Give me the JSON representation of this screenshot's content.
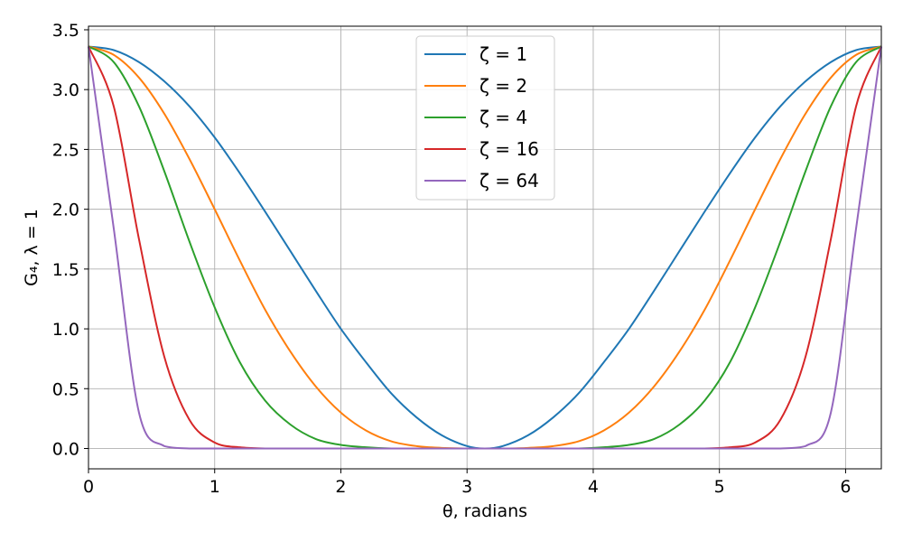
{
  "chart_data": {
    "type": "line",
    "title": "",
    "xlabel": "θ, radians",
    "ylabel": "G₄, λ = 1",
    "xlim": [
      0,
      6.283185
    ],
    "ylim": [
      -0.17,
      3.53
    ],
    "grid": true,
    "legend_position": "top-center",
    "x_ticks": [
      0,
      1,
      2,
      3,
      4,
      5,
      6
    ],
    "x_tick_labels": [
      "0",
      "1",
      "2",
      "3",
      "4",
      "5",
      "6"
    ],
    "y_ticks": [
      0,
      0.5,
      1,
      1.5,
      2,
      2.5,
      3,
      3.5
    ],
    "y_tick_labels": [
      "0.0",
      "0.5",
      "1.0",
      "1.5",
      "2.0",
      "2.5",
      "3.0",
      "3.5"
    ],
    "x": [
      0,
      0.2,
      0.4,
      0.6,
      0.8,
      1.0,
      1.2,
      1.4,
      1.6,
      1.8,
      2.0,
      2.2,
      2.4,
      2.6,
      2.8,
      3.0,
      3.1416,
      3.2832,
      3.4832,
      3.6832,
      3.8832,
      4.0832,
      4.2832,
      4.4832,
      4.6832,
      4.8832,
      5.0832,
      5.2832,
      5.4832,
      5.6832,
      5.8832,
      6.0832,
      6.2832
    ],
    "series": [
      {
        "name": "ζ = 1",
        "color": "#1f77b4",
        "values": [
          3.36,
          3.33,
          3.23,
          3.07,
          2.86,
          2.6,
          2.3,
          1.98,
          1.65,
          1.32,
          1.0,
          0.72,
          0.46,
          0.26,
          0.11,
          0.02,
          0,
          0.02,
          0.11,
          0.26,
          0.46,
          0.72,
          1.0,
          1.32,
          1.65,
          1.98,
          2.3,
          2.6,
          2.86,
          3.07,
          3.23,
          3.33,
          3.36
        ]
      },
      {
        "name": "ζ = 2",
        "color": "#ff7f0e",
        "values": [
          3.36,
          3.29,
          3.1,
          2.8,
          2.42,
          2.0,
          1.57,
          1.16,
          0.81,
          0.52,
          0.3,
          0.15,
          0.06,
          0.02,
          0.005,
          0,
          0,
          0,
          0.005,
          0.02,
          0.06,
          0.15,
          0.3,
          0.52,
          0.81,
          1.16,
          1.57,
          2.0,
          2.42,
          2.8,
          3.1,
          3.29,
          3.36
        ]
      },
      {
        "name": "ζ = 4",
        "color": "#2ca02c",
        "values": [
          3.36,
          3.23,
          2.86,
          2.32,
          1.73,
          1.18,
          0.72,
          0.4,
          0.2,
          0.08,
          0.03,
          0.01,
          0,
          0,
          0,
          0,
          0,
          0,
          0,
          0,
          0,
          0.01,
          0.03,
          0.08,
          0.2,
          0.4,
          0.72,
          1.18,
          1.73,
          2.32,
          2.86,
          3.23,
          3.36
        ]
      },
      {
        "name": "ζ = 16",
        "color": "#d62728",
        "values": [
          3.36,
          2.86,
          1.75,
          0.77,
          0.24,
          0.05,
          0.01,
          0,
          0,
          0,
          0,
          0,
          0,
          0,
          0,
          0,
          0,
          0,
          0,
          0,
          0,
          0,
          0,
          0,
          0,
          0,
          0.01,
          0.05,
          0.24,
          0.77,
          1.75,
          2.86,
          3.36
        ]
      },
      {
        "name": "ζ = 64",
        "color": "#9467bd",
        "values": [
          3.36,
          1.84,
          0.3,
          0.02,
          0,
          0,
          0,
          0,
          0,
          0,
          0,
          0,
          0,
          0,
          0,
          0,
          0,
          0,
          0,
          0,
          0,
          0,
          0,
          0,
          0,
          0,
          0,
          0,
          0,
          0.02,
          0.3,
          1.84,
          3.36
        ]
      }
    ]
  }
}
